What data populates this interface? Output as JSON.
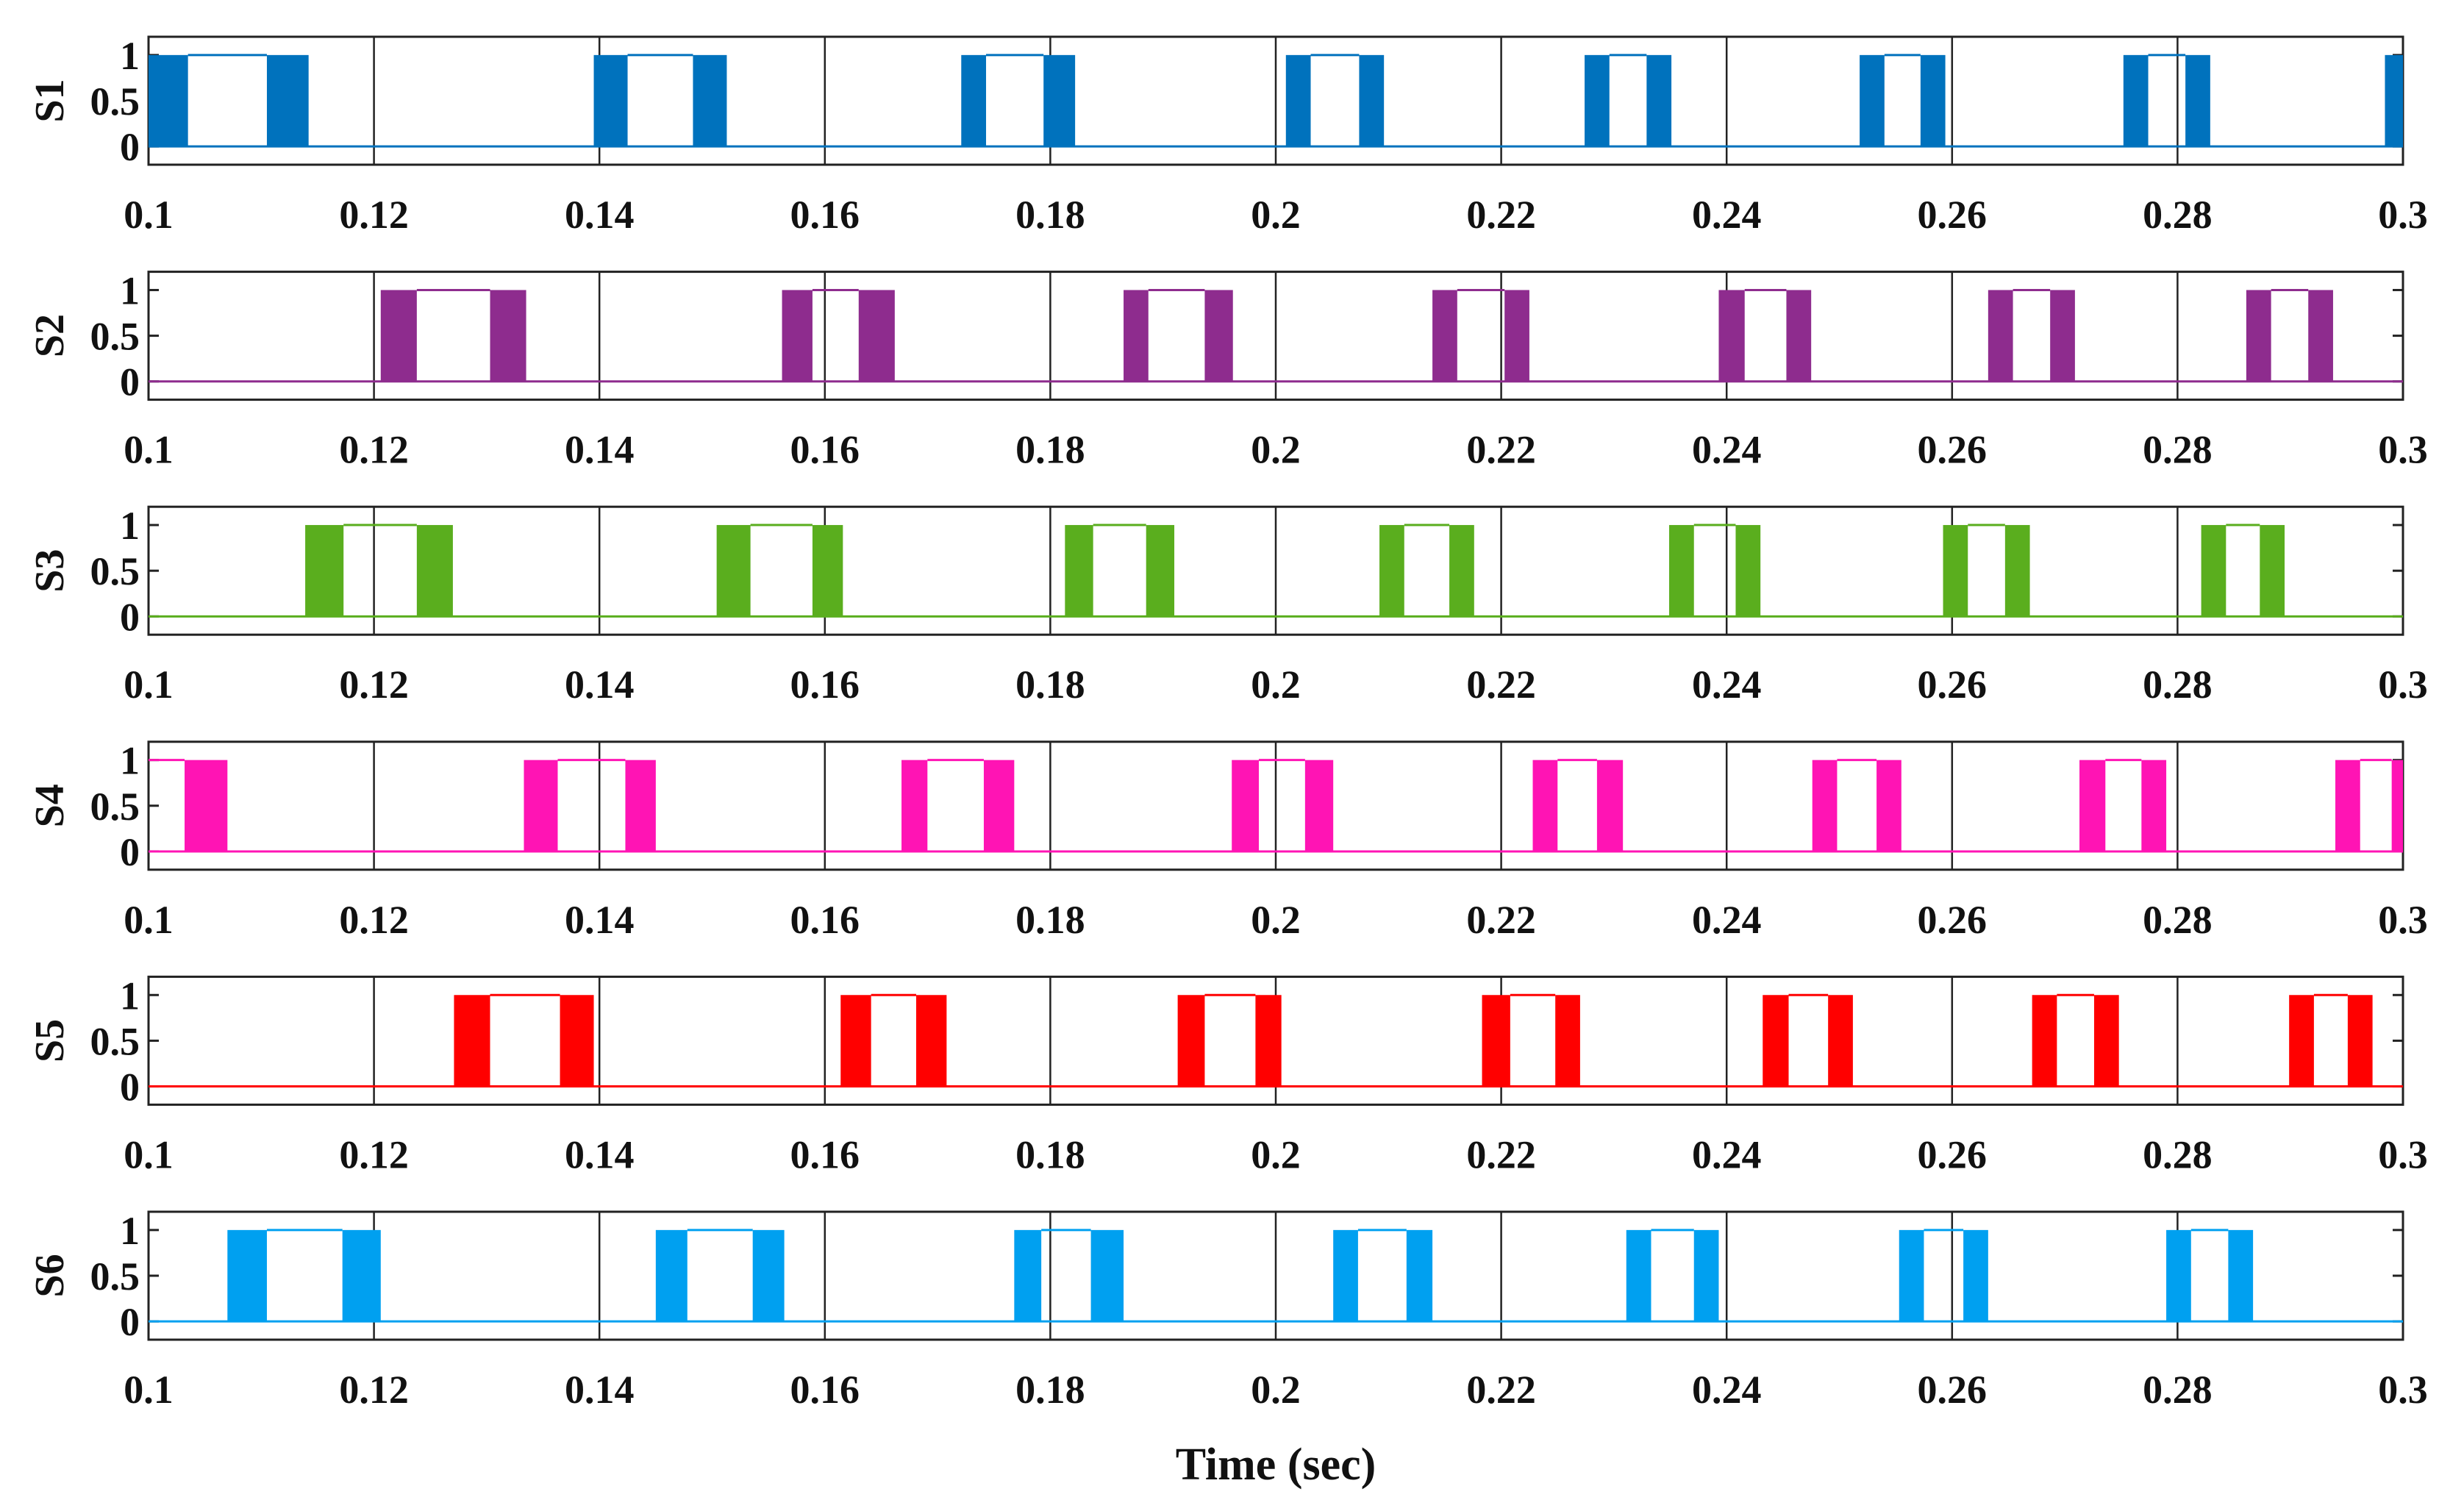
{
  "chart_data": {
    "type": "line",
    "subtype": "stacked switching-pulse subplots",
    "xlabel": "Time (sec)",
    "xlim": [
      0.1,
      0.3
    ],
    "x_ticks": [
      0.1,
      0.12,
      0.14,
      0.16,
      0.18,
      0.2,
      0.22,
      0.24,
      0.26,
      0.28,
      0.3
    ],
    "x_tick_labels": [
      "0.1",
      "0.12",
      "0.14",
      "0.16",
      "0.18",
      "0.2",
      "0.22",
      "0.24",
      "0.26",
      "0.28",
      "0.3"
    ],
    "ylim": [
      -0.2,
      1.2
    ],
    "y_ticks": [
      0,
      0.5,
      1
    ],
    "y_tick_labels": [
      "0",
      "0.5",
      "1"
    ],
    "grid": "vertical only",
    "series": [
      {
        "name": "S1",
        "color": "#0072BD",
        "pwm_bands": [
          [
            0.1,
            0.1035
          ],
          [
            0.1105,
            0.1142
          ],
          [
            0.1395,
            0.1425
          ],
          [
            0.1483,
            0.1513
          ],
          [
            0.1721,
            0.1743
          ],
          [
            0.1794,
            0.1822
          ],
          [
            0.2009,
            0.2031
          ],
          [
            0.2074,
            0.2096
          ],
          [
            0.2274,
            0.2296
          ],
          [
            0.2329,
            0.2351
          ],
          [
            0.2518,
            0.254
          ],
          [
            0.2572,
            0.2594
          ],
          [
            0.2752,
            0.2774
          ],
          [
            0.2807,
            0.2829
          ],
          [
            0.2984,
            0.3
          ]
        ],
        "high_plateaus": [
          [
            0.1035,
            0.1105
          ],
          [
            0.1425,
            0.1483
          ],
          [
            0.1743,
            0.1794
          ],
          [
            0.2031,
            0.2074
          ],
          [
            0.2296,
            0.2329
          ],
          [
            0.254,
            0.2572
          ],
          [
            0.2774,
            0.2807
          ]
        ]
      },
      {
        "name": "S2",
        "color": "#8E2C8E",
        "pwm_bands": [
          [
            0.1206,
            0.1238
          ],
          [
            0.1303,
            0.1335
          ],
          [
            0.1562,
            0.1589
          ],
          [
            0.163,
            0.1662
          ],
          [
            0.1865,
            0.1887
          ],
          [
            0.1937,
            0.1962
          ],
          [
            0.2139,
            0.2161
          ],
          [
            0.2203,
            0.2225
          ],
          [
            0.2393,
            0.2416
          ],
          [
            0.2453,
            0.2475
          ],
          [
            0.2632,
            0.2654
          ],
          [
            0.2687,
            0.2709
          ],
          [
            0.2861,
            0.2883
          ],
          [
            0.2916,
            0.2938
          ]
        ],
        "high_plateaus": [
          [
            0.1238,
            0.1303
          ],
          [
            0.1589,
            0.163
          ],
          [
            0.1887,
            0.1937
          ],
          [
            0.2161,
            0.2203
          ],
          [
            0.2416,
            0.2453
          ],
          [
            0.2654,
            0.2687
          ],
          [
            0.2883,
            0.2916
          ]
        ]
      },
      {
        "name": "S3",
        "color": "#5AAE1E",
        "pwm_bands": [
          [
            0.1139,
            0.1173
          ],
          [
            0.1238,
            0.127
          ],
          [
            0.1504,
            0.1534
          ],
          [
            0.1589,
            0.1616
          ],
          [
            0.1813,
            0.1838
          ],
          [
            0.1885,
            0.191
          ],
          [
            0.2092,
            0.2114
          ],
          [
            0.2154,
            0.2176
          ],
          [
            0.2349,
            0.2371
          ],
          [
            0.2408,
            0.243
          ],
          [
            0.2592,
            0.2614
          ],
          [
            0.2647,
            0.2669
          ],
          [
            0.2821,
            0.2843
          ],
          [
            0.2873,
            0.2895
          ]
        ],
        "high_plateaus": [
          [
            0.1173,
            0.1238
          ],
          [
            0.1534,
            0.1589
          ],
          [
            0.1838,
            0.1885
          ],
          [
            0.2114,
            0.2154
          ],
          [
            0.2371,
            0.2408
          ],
          [
            0.2614,
            0.2647
          ],
          [
            0.2843,
            0.2873
          ]
        ]
      },
      {
        "name": "S4",
        "color": "#FF14B4",
        "pwm_bands": [
          [
            0.1032,
            0.107
          ],
          [
            0.1333,
            0.1363
          ],
          [
            0.1423,
            0.145
          ],
          [
            0.1668,
            0.1691
          ],
          [
            0.1741,
            0.1768
          ],
          [
            0.1961,
            0.1985
          ],
          [
            0.2026,
            0.2051
          ],
          [
            0.2228,
            0.225
          ],
          [
            0.2285,
            0.2308
          ],
          [
            0.2476,
            0.2498
          ],
          [
            0.2533,
            0.2555
          ],
          [
            0.2713,
            0.2736
          ],
          [
            0.2768,
            0.279
          ],
          [
            0.294,
            0.2962
          ],
          [
            0.299,
            0.3
          ]
        ],
        "high_plateaus": [
          [
            0.1,
            0.1032
          ],
          [
            0.1363,
            0.1423
          ],
          [
            0.1691,
            0.1741
          ],
          [
            0.1985,
            0.2026
          ],
          [
            0.225,
            0.2285
          ],
          [
            0.2498,
            0.2533
          ],
          [
            0.2736,
            0.2768
          ],
          [
            0.2962,
            0.299
          ]
        ]
      },
      {
        "name": "S5",
        "color": "#FF0000",
        "pwm_bands": [
          [
            0.1271,
            0.1303
          ],
          [
            0.1365,
            0.1395
          ],
          [
            0.1614,
            0.1641
          ],
          [
            0.1681,
            0.1708
          ],
          [
            0.1913,
            0.1937
          ],
          [
            0.1982,
            0.2005
          ],
          [
            0.2183,
            0.2208
          ],
          [
            0.2248,
            0.227
          ],
          [
            0.2432,
            0.2455
          ],
          [
            0.249,
            0.2512
          ],
          [
            0.2671,
            0.2693
          ],
          [
            0.2726,
            0.2748
          ],
          [
            0.2899,
            0.2921
          ],
          [
            0.2951,
            0.2973
          ]
        ],
        "high_plateaus": [
          [
            0.1303,
            0.1365
          ],
          [
            0.1641,
            0.1681
          ],
          [
            0.1937,
            0.1982
          ],
          [
            0.2208,
            0.2248
          ],
          [
            0.2455,
            0.249
          ],
          [
            0.2693,
            0.2726
          ],
          [
            0.2921,
            0.2951
          ]
        ]
      },
      {
        "name": "S6",
        "color": "#00A0F0",
        "pwm_bands": [
          [
            0.107,
            0.1105
          ],
          [
            0.1172,
            0.1206
          ],
          [
            0.145,
            0.1478
          ],
          [
            0.1536,
            0.1564
          ],
          [
            0.1768,
            0.1792
          ],
          [
            0.1836,
            0.1865
          ],
          [
            0.2051,
            0.2073
          ],
          [
            0.2116,
            0.2139
          ],
          [
            0.2311,
            0.2333
          ],
          [
            0.2371,
            0.2393
          ],
          [
            0.2553,
            0.2575
          ],
          [
            0.261,
            0.2632
          ],
          [
            0.279,
            0.2812
          ],
          [
            0.2845,
            0.2867
          ]
        ],
        "high_plateaus": [
          [
            0.1105,
            0.1172
          ],
          [
            0.1478,
            0.1536
          ],
          [
            0.1792,
            0.1836
          ],
          [
            0.2073,
            0.2116
          ],
          [
            0.2333,
            0.2371
          ],
          [
            0.2575,
            0.261
          ],
          [
            0.2812,
            0.2845
          ]
        ]
      }
    ]
  }
}
